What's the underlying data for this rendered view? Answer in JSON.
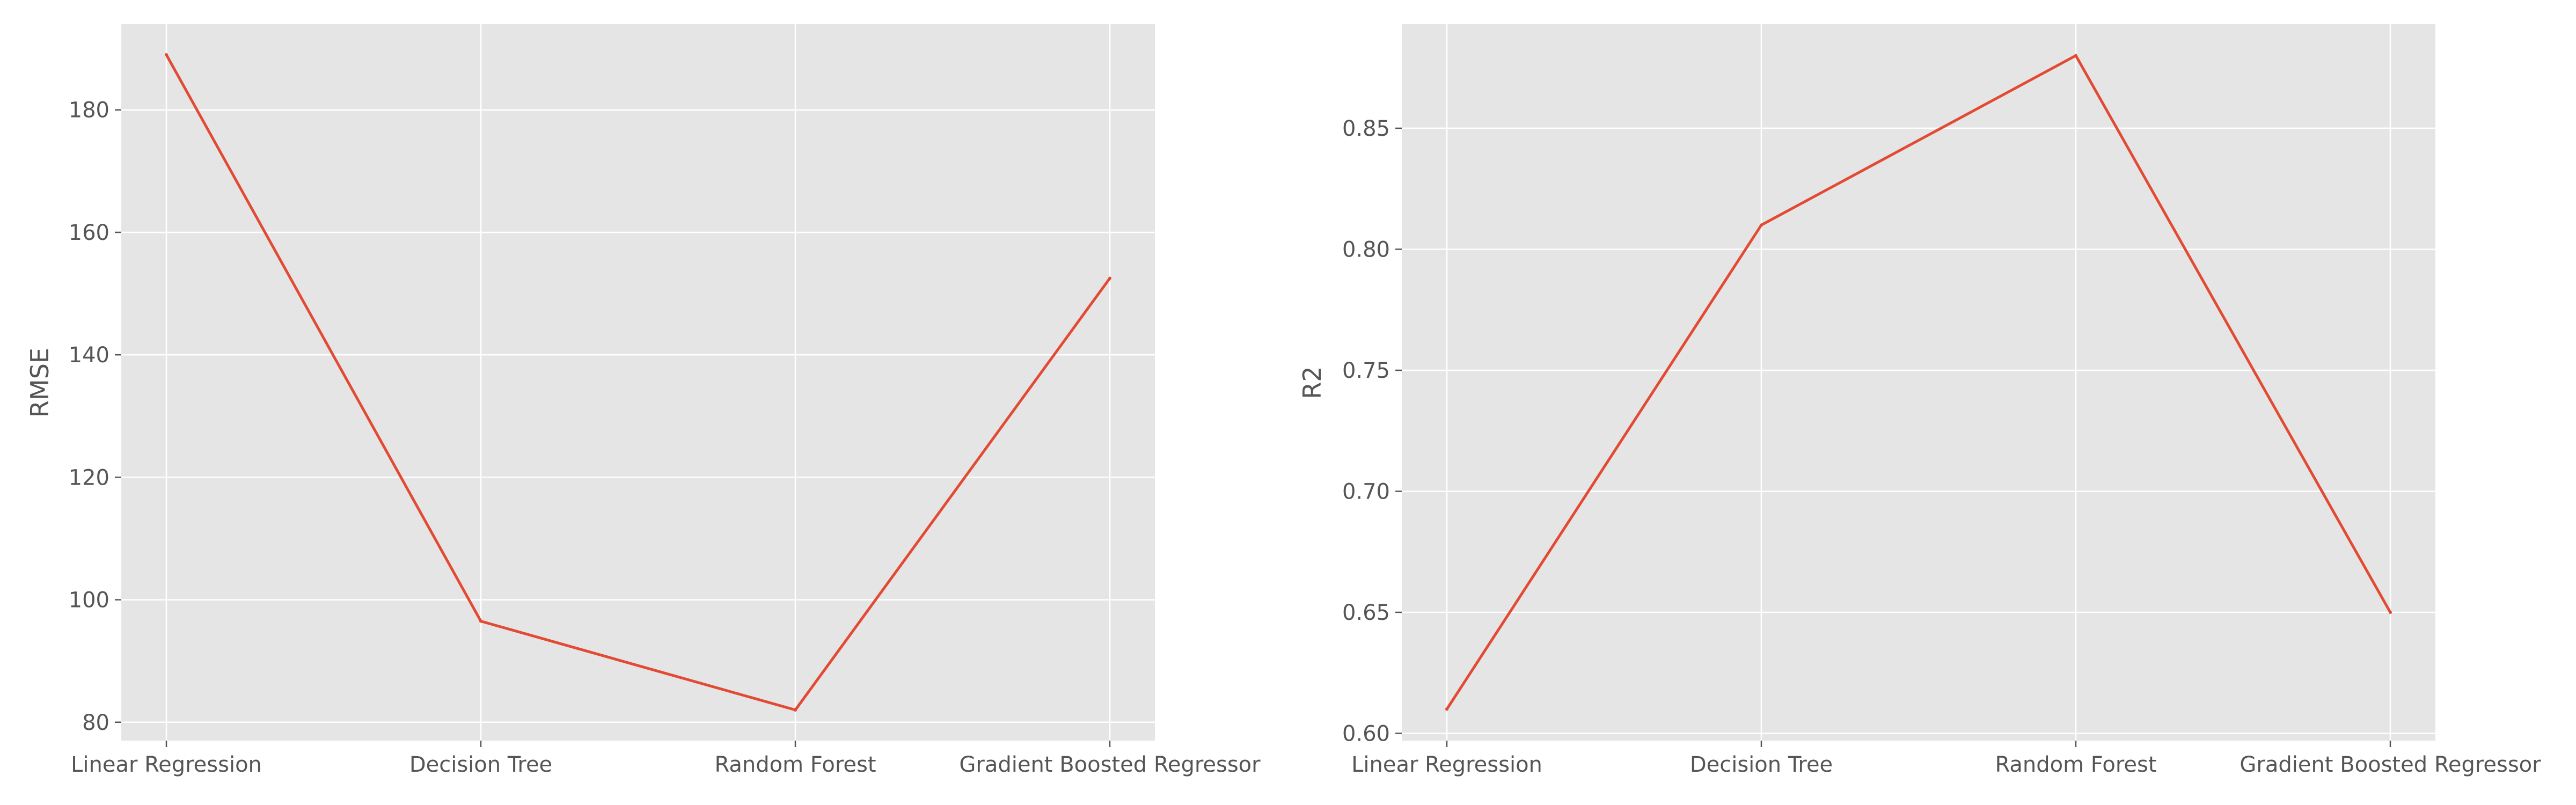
{
  "chart_data": [
    {
      "type": "line",
      "categories": [
        "Linear Regression",
        "Decision Tree",
        "Random Forest",
        "Gradient Boosted Regressor"
      ],
      "values": [
        189,
        96.5,
        82,
        152.5
      ],
      "title": "",
      "xlabel": "",
      "ylabel": "RMSE",
      "ylim": [
        77,
        194
      ],
      "yticks": [
        80,
        100,
        120,
        140,
        160,
        180
      ],
      "ytick_decimals": 0,
      "grid": true,
      "color": "#e24a33"
    },
    {
      "type": "line",
      "categories": [
        "Linear Regression",
        "Decision Tree",
        "Random Forest",
        "Gradient Boosted Regressor"
      ],
      "values": [
        0.61,
        0.81,
        0.88,
        0.65
      ],
      "title": "",
      "xlabel": "",
      "ylabel": "R2",
      "ylim": [
        0.597,
        0.893
      ],
      "yticks": [
        0.6,
        0.65,
        0.7,
        0.75,
        0.8,
        0.85
      ],
      "ytick_decimals": 2,
      "grid": true,
      "color": "#e24a33"
    }
  ]
}
